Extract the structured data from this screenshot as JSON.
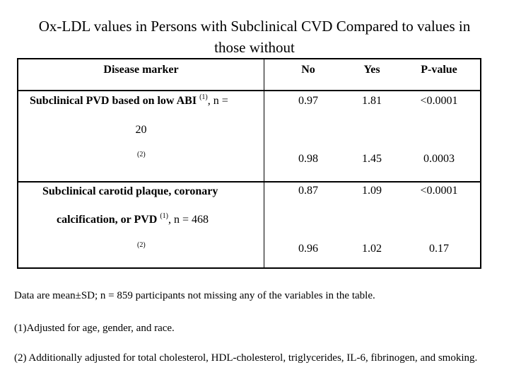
{
  "title": {
    "line1": "Ox-LDL values in Persons with Subclinical CVD Compared to values in",
    "line2": "those without"
  },
  "table": {
    "headers": {
      "marker": "Disease marker",
      "no": "No",
      "yes": "Yes",
      "p": "P-value"
    },
    "group1": {
      "label_a": "Subclinical PVD based on low ABI",
      "sup1": "(1)",
      "label_b": ", n =",
      "label_c": "20",
      "sup2": "(2)",
      "row1": {
        "no": "0.97",
        "yes": "1.81",
        "p": "<0.0001"
      },
      "row2": {
        "no": "0.98",
        "yes": "1.45",
        "p": "0.0003"
      }
    },
    "group2": {
      "label_a": "Subclinical carotid plaque, coronary",
      "label_b": "calcification, or PVD",
      "sup1": "(1)",
      "label_c": ", n = 468",
      "sup2": "(2)",
      "row1": {
        "no": "0.87",
        "yes": "1.09",
        "p": "<0.0001"
      },
      "row2": {
        "no": "0.96",
        "yes": "1.02",
        "p": "0.17"
      }
    }
  },
  "notes": {
    "n1": "Data are mean±SD; n = 859 participants not missing any of the variables in the table.",
    "n2": "(1)Adjusted for age, gender, and race.",
    "n3": "(2)  Additionally adjusted for total cholesterol, HDL-cholesterol, triglycerides, IL-6, fibrinogen, and smoking."
  }
}
